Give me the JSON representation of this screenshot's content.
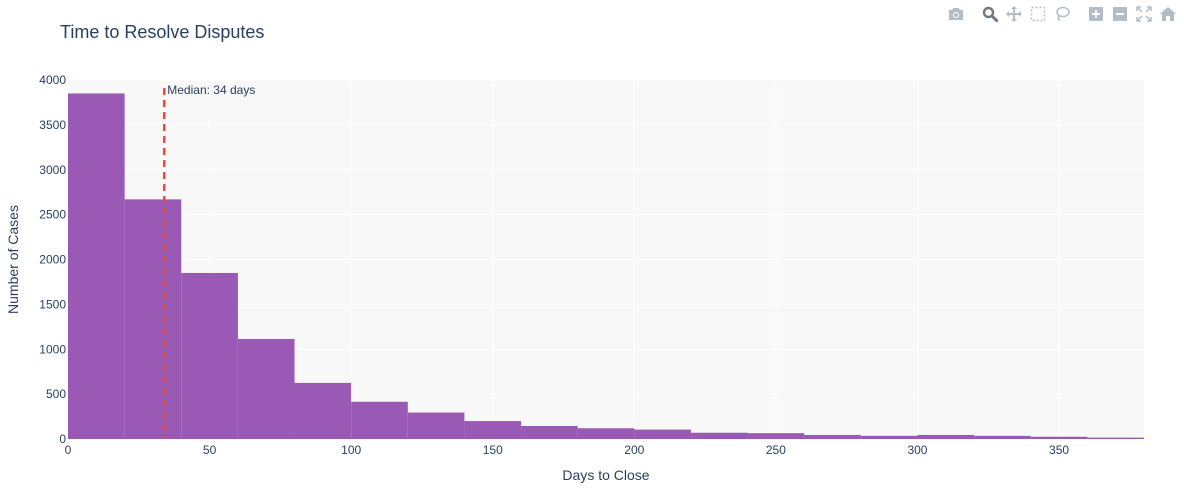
{
  "title": "Time to Resolve Disputes",
  "modebar": {
    "icons": [
      "camera-icon",
      "zoom-icon",
      "pan-icon",
      "box-select-icon",
      "lasso-select-icon",
      "zoom-in-icon",
      "zoom-out-icon",
      "autoscale-icon",
      "home-icon"
    ],
    "icon_color": "#b4bcc6",
    "active_icon_color": "#6f7782"
  },
  "chart_data": {
    "type": "bar",
    "subtype": "histogram",
    "title": "Time to Resolve Disputes",
    "xlabel": "Days to Close",
    "ylabel": "Number of Cases",
    "bin_edges": [
      0,
      20,
      40,
      60,
      80,
      100,
      120,
      140,
      160,
      180,
      200,
      220,
      240,
      260,
      280,
      300,
      320,
      340,
      360,
      380
    ],
    "values": [
      3850,
      2670,
      1850,
      1115,
      625,
      415,
      295,
      200,
      145,
      120,
      105,
      70,
      65,
      45,
      35,
      45,
      35,
      25,
      15
    ],
    "xlim": [
      0,
      380
    ],
    "ylim": [
      0,
      4000
    ],
    "x_ticks": [
      0,
      50,
      100,
      150,
      200,
      250,
      300,
      350
    ],
    "y_ticks": [
      0,
      500,
      1000,
      1500,
      2000,
      2500,
      3000,
      3500,
      4000
    ],
    "bar_color": "#9b59b6",
    "plot_background": "#f8f8f8",
    "grid": true,
    "median_line": {
      "x": 34,
      "color": "#e74c3c",
      "style": "dashed",
      "label": "Median: 34 days"
    }
  }
}
